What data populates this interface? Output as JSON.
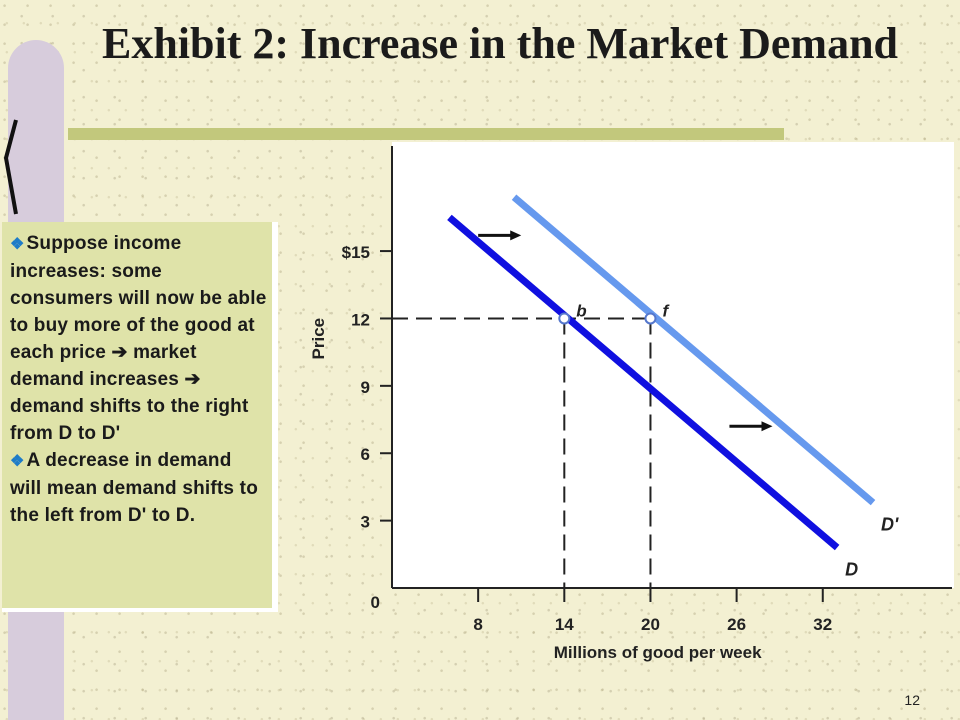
{
  "slide": {
    "title": "Exhibit 2: Increase in the Market Demand",
    "page_number": "12"
  },
  "callout": {
    "bullets": [
      "Suppose income increases: some consumers will now be able to buy more of the good at each price ➔ market demand increases ➔ demand shifts to the right from D to D'",
      "A decrease in demand  will mean demand shifts to the left from D' to D."
    ]
  },
  "colors": {
    "demand_D": "#1010e0",
    "demand_D_prime": "#6699ee",
    "callout_bg": "#dfe3a9",
    "title_rule": "#c2c87c",
    "left_band": "#d7ccdc"
  },
  "chart_data": {
    "type": "line",
    "title": "",
    "xlabel": "Millions of  good per week",
    "ylabel": "Price",
    "xlim": [
      2,
      41
    ],
    "ylim": [
      0,
      19.5
    ],
    "x_ticks": [
      8,
      14,
      20,
      26,
      32
    ],
    "x_tick_labels": [
      "8",
      "14",
      "20",
      "26",
      "32"
    ],
    "y_ticks": [
      0,
      3,
      6,
      9,
      12,
      15
    ],
    "y_tick_labels": [
      "0",
      "3",
      "6",
      "9",
      "12",
      "$15"
    ],
    "series": [
      {
        "name": "D",
        "points": [
          [
            6,
            16.5
          ],
          [
            33,
            1.8
          ]
        ]
      },
      {
        "name": "D'",
        "points": [
          [
            10.5,
            17.4
          ],
          [
            35.5,
            3.8
          ]
        ]
      }
    ],
    "points": [
      {
        "label": "b",
        "x": 14,
        "y": 12
      },
      {
        "label": "f",
        "x": 20,
        "y": 12
      }
    ],
    "shift_arrows": [
      {
        "from": [
          8,
          15.7
        ],
        "to": [
          11,
          15.7
        ]
      },
      {
        "from": [
          25.5,
          7.2
        ],
        "to": [
          28.5,
          7.2
        ]
      }
    ],
    "grid": false,
    "legend": "none"
  }
}
